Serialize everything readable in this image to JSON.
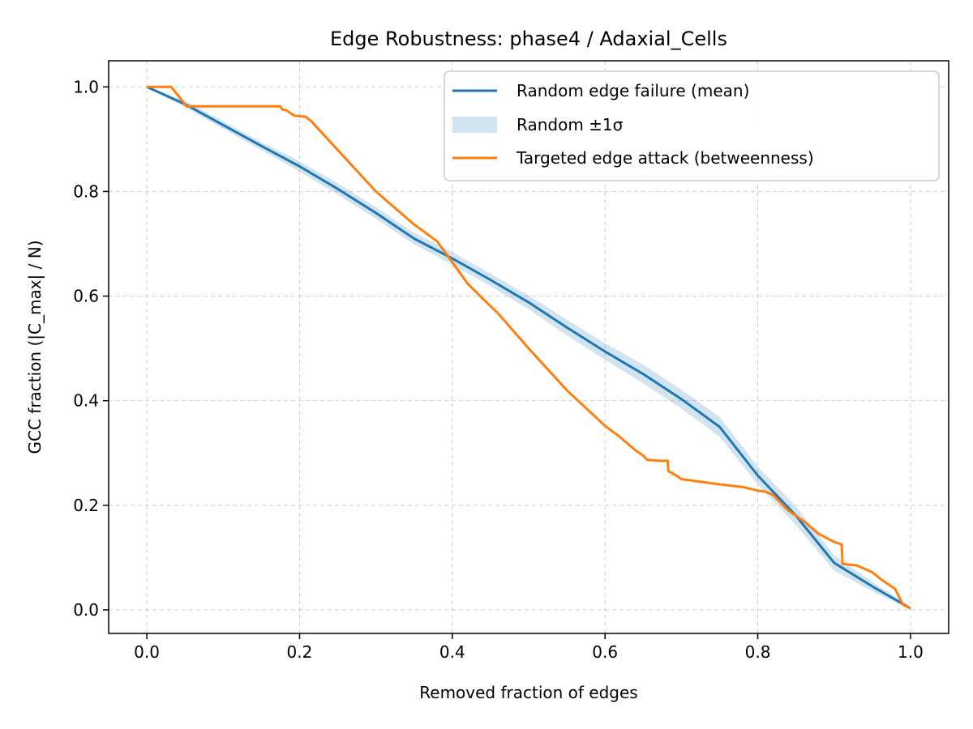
{
  "chart_data": {
    "type": "line",
    "title": "Edge Robustness: phase4 / Adaxial_Cells",
    "xlabel": "Removed fraction of edges",
    "ylabel": "GCC fraction (|C_max| / N)",
    "xlim": [
      -0.05,
      1.05
    ],
    "ylim": [
      -0.045,
      1.05
    ],
    "xticks": [
      0.0,
      0.2,
      0.4,
      0.6,
      0.8,
      1.0
    ],
    "xtick_labels": [
      "0.0",
      "0.2",
      "0.4",
      "0.6",
      "0.8",
      "1.0"
    ],
    "yticks": [
      0.0,
      0.2,
      0.4,
      0.6,
      0.8,
      1.0
    ],
    "ytick_labels": [
      "0.0",
      "0.2",
      "0.4",
      "0.6",
      "0.8",
      "1.0"
    ],
    "grid": true,
    "legend_position": "upper right",
    "series": [
      {
        "name": "Random edge failure (mean)",
        "kind": "line",
        "color": "#1f77b4",
        "x": [
          0.0,
          0.05,
          0.1,
          0.15,
          0.2,
          0.25,
          0.3,
          0.35,
          0.4,
          0.45,
          0.5,
          0.55,
          0.6,
          0.65,
          0.7,
          0.75,
          0.8,
          0.85,
          0.9,
          0.95,
          1.0
        ],
        "y": [
          1.0,
          0.967,
          0.927,
          0.887,
          0.848,
          0.805,
          0.759,
          0.71,
          0.672,
          0.631,
          0.588,
          0.54,
          0.494,
          0.451,
          0.403,
          0.35,
          0.257,
          0.18,
          0.09,
          0.045,
          0.003
        ]
      },
      {
        "name": "Random ±1σ",
        "kind": "band",
        "color": "#1f77b4",
        "opacity": 0.2,
        "x": [
          0.0,
          0.05,
          0.1,
          0.15,
          0.2,
          0.25,
          0.3,
          0.35,
          0.4,
          0.45,
          0.5,
          0.55,
          0.6,
          0.65,
          0.7,
          0.75,
          0.8,
          0.85,
          0.9,
          0.95,
          1.0
        ],
        "lower": [
          1.0,
          0.961,
          0.92,
          0.879,
          0.838,
          0.794,
          0.748,
          0.699,
          0.66,
          0.619,
          0.575,
          0.525,
          0.478,
          0.433,
          0.385,
          0.331,
          0.24,
          0.162,
          0.075,
          0.036,
          0.0
        ],
        "upper": [
          1.0,
          0.973,
          0.934,
          0.895,
          0.858,
          0.816,
          0.77,
          0.721,
          0.684,
          0.643,
          0.601,
          0.555,
          0.51,
          0.469,
          0.421,
          0.369,
          0.274,
          0.198,
          0.105,
          0.054,
          0.006
        ]
      },
      {
        "name": "Targeted edge attack (betweenness)",
        "kind": "line",
        "color": "#ff7f0e",
        "x": [
          0.0,
          0.032,
          0.052,
          0.056,
          0.175,
          0.177,
          0.183,
          0.188,
          0.193,
          0.2,
          0.208,
          0.215,
          0.3,
          0.35,
          0.38,
          0.4,
          0.42,
          0.44,
          0.46,
          0.5,
          0.55,
          0.6,
          0.62,
          0.64,
          0.65,
          0.655,
          0.67,
          0.682,
          0.683,
          0.69,
          0.7,
          0.72,
          0.75,
          0.78,
          0.8,
          0.81,
          0.82,
          0.84,
          0.86,
          0.88,
          0.9,
          0.91,
          0.911,
          0.93,
          0.95,
          0.96,
          0.97,
          0.98,
          0.99,
          1.0
        ],
        "y": [
          1.0,
          1.0,
          0.963,
          0.963,
          0.963,
          0.957,
          0.955,
          0.95,
          0.945,
          0.944,
          0.943,
          0.935,
          0.8,
          0.737,
          0.705,
          0.665,
          0.624,
          0.595,
          0.567,
          0.5,
          0.42,
          0.352,
          0.33,
          0.305,
          0.295,
          0.287,
          0.285,
          0.285,
          0.265,
          0.26,
          0.25,
          0.246,
          0.24,
          0.235,
          0.228,
          0.226,
          0.22,
          0.19,
          0.17,
          0.145,
          0.13,
          0.125,
          0.088,
          0.085,
          0.072,
          0.06,
          0.05,
          0.04,
          0.01,
          0.003
        ]
      }
    ]
  }
}
